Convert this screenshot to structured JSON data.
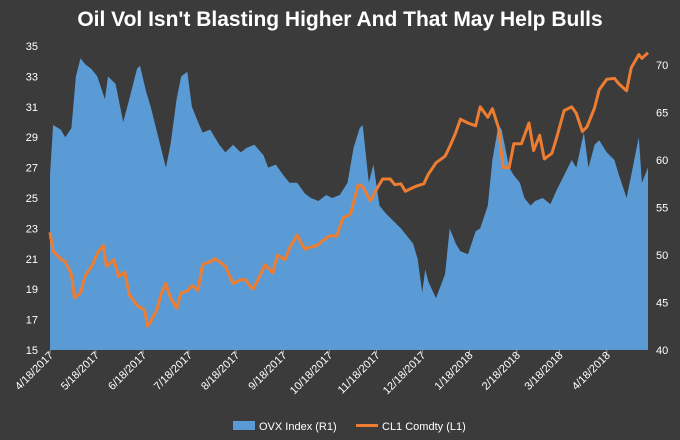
{
  "chart_data": {
    "type": "area",
    "title": "Oil Vol Isn't Blasting Higher And That May Help Bulls",
    "x_tick_labels": [
      "4/18/2017",
      "5/18/2017",
      "6/18/2017",
      "7/18/2017",
      "8/18/2017",
      "9/18/2017",
      "10/18/2017",
      "11/18/2017",
      "12/18/2017",
      "1/18/2018",
      "2/18/2018",
      "3/18/2018",
      "4/18/2018"
    ],
    "y_left": {
      "range": [
        15,
        35
      ],
      "ticks": [
        15,
        17,
        19,
        21,
        23,
        25,
        27,
        29,
        31,
        33,
        35
      ]
    },
    "y_right": {
      "range": [
        40,
        72
      ],
      "ticks": [
        40,
        45,
        50,
        55,
        60,
        65,
        70
      ]
    },
    "x_range": [
      "2017-04-18",
      "2018-05-15"
    ],
    "legend_position": "bottom",
    "grid": false,
    "series": [
      {
        "name": "OVX Index  (R1)",
        "type": "area",
        "axis": "left",
        "color": "#5b9bd5",
        "points": [
          [
            "2017-04-18",
            26.5
          ],
          [
            "2017-04-20",
            29.8
          ],
          [
            "2017-04-25",
            29.5
          ],
          [
            "2017-04-28",
            29.0
          ],
          [
            "2017-05-02",
            29.6
          ],
          [
            "2017-05-05",
            33.0
          ],
          [
            "2017-05-08",
            34.2
          ],
          [
            "2017-05-11",
            33.8
          ],
          [
            "2017-05-15",
            33.5
          ],
          [
            "2017-05-19",
            33.0
          ],
          [
            "2017-05-24",
            31.5
          ],
          [
            "2017-05-26",
            33.0
          ],
          [
            "2017-05-31",
            32.5
          ],
          [
            "2017-06-05",
            30.0
          ],
          [
            "2017-06-09",
            31.5
          ],
          [
            "2017-06-14",
            33.5
          ],
          [
            "2017-06-16",
            33.7
          ],
          [
            "2017-06-20",
            32.0
          ],
          [
            "2017-06-23",
            31.0
          ],
          [
            "2017-06-28",
            29.0
          ],
          [
            "2017-07-03",
            27.0
          ],
          [
            "2017-07-06",
            28.5
          ],
          [
            "2017-07-10",
            31.5
          ],
          [
            "2017-07-13",
            33.0
          ],
          [
            "2017-07-17",
            33.3
          ],
          [
            "2017-07-20",
            31.0
          ],
          [
            "2017-07-24",
            30.0
          ],
          [
            "2017-07-27",
            29.3
          ],
          [
            "2017-08-01",
            29.5
          ],
          [
            "2017-08-07",
            28.5
          ],
          [
            "2017-08-11",
            28.0
          ],
          [
            "2017-08-16",
            28.5
          ],
          [
            "2017-08-21",
            28.0
          ],
          [
            "2017-08-25",
            28.3
          ],
          [
            "2017-08-30",
            28.5
          ],
          [
            "2017-09-05",
            27.8
          ],
          [
            "2017-09-08",
            27.0
          ],
          [
            "2017-09-13",
            27.2
          ],
          [
            "2017-09-18",
            26.5
          ],
          [
            "2017-09-22",
            26.0
          ],
          [
            "2017-09-27",
            26.0
          ],
          [
            "2017-10-02",
            25.3
          ],
          [
            "2017-10-06",
            25.0
          ],
          [
            "2017-10-11",
            24.8
          ],
          [
            "2017-10-16",
            25.2
          ],
          [
            "2017-10-20",
            25.0
          ],
          [
            "2017-10-25",
            25.2
          ],
          [
            "2017-10-30",
            26.0
          ],
          [
            "2017-11-03",
            28.3
          ],
          [
            "2017-11-07",
            29.6
          ],
          [
            "2017-11-09",
            29.8
          ],
          [
            "2017-11-13",
            26.0
          ],
          [
            "2017-11-16",
            27.2
          ],
          [
            "2017-11-20",
            24.5
          ],
          [
            "2017-11-24",
            24.0
          ],
          [
            "2017-11-29",
            23.5
          ],
          [
            "2017-12-04",
            23.0
          ],
          [
            "2017-12-08",
            22.5
          ],
          [
            "2017-12-12",
            22.0
          ],
          [
            "2017-12-15",
            21.0
          ],
          [
            "2017-12-18",
            18.8
          ],
          [
            "2017-12-20",
            20.3
          ],
          [
            "2017-12-22",
            19.5
          ],
          [
            "2017-12-27",
            18.4
          ],
          [
            "2018-01-02",
            20.0
          ],
          [
            "2018-01-05",
            23.0
          ],
          [
            "2018-01-09",
            22.0
          ],
          [
            "2018-01-12",
            21.5
          ],
          [
            "2018-01-17",
            21.3
          ],
          [
            "2018-01-22",
            22.8
          ],
          [
            "2018-01-25",
            23.0
          ],
          [
            "2018-01-30",
            24.5
          ],
          [
            "2018-02-02",
            27.5
          ],
          [
            "2018-02-06",
            29.8
          ],
          [
            "2018-02-08",
            29.5
          ],
          [
            "2018-02-13",
            27.0
          ],
          [
            "2018-02-16",
            26.5
          ],
          [
            "2018-02-20",
            26.0
          ],
          [
            "2018-02-23",
            25.0
          ],
          [
            "2018-02-27",
            24.5
          ],
          [
            "2018-03-02",
            24.8
          ],
          [
            "2018-03-07",
            25.0
          ],
          [
            "2018-03-12",
            24.6
          ],
          [
            "2018-03-16",
            25.5
          ],
          [
            "2018-03-21",
            26.5
          ],
          [
            "2018-03-26",
            27.5
          ],
          [
            "2018-03-29",
            27.0
          ],
          [
            "2018-04-03",
            29.3
          ],
          [
            "2018-04-06",
            27.0
          ],
          [
            "2018-04-10",
            28.5
          ],
          [
            "2018-04-13",
            28.8
          ],
          [
            "2018-04-18",
            28.0
          ],
          [
            "2018-04-23",
            27.5
          ],
          [
            "2018-04-26",
            26.5
          ],
          [
            "2018-05-01",
            25.0
          ],
          [
            "2018-05-04",
            26.5
          ],
          [
            "2018-05-09",
            29.0
          ],
          [
            "2018-05-11",
            26.0
          ],
          [
            "2018-05-15",
            27.0
          ]
        ]
      },
      {
        "name": "CL1 Comdty  (L1)",
        "type": "line",
        "axis": "right",
        "color": "#ed7d31",
        "points": [
          [
            "2017-04-18",
            52.4
          ],
          [
            "2017-04-20",
            50.4
          ],
          [
            "2017-04-25",
            49.6
          ],
          [
            "2017-04-28",
            49.3
          ],
          [
            "2017-05-02",
            48.0
          ],
          [
            "2017-05-04",
            45.5
          ],
          [
            "2017-05-08",
            46.0
          ],
          [
            "2017-05-11",
            47.8
          ],
          [
            "2017-05-16",
            49.0
          ],
          [
            "2017-05-19",
            50.2
          ],
          [
            "2017-05-23",
            51.0
          ],
          [
            "2017-05-25",
            48.8
          ],
          [
            "2017-05-30",
            49.5
          ],
          [
            "2017-06-02",
            47.7
          ],
          [
            "2017-06-06",
            48.2
          ],
          [
            "2017-06-09",
            45.8
          ],
          [
            "2017-06-14",
            44.7
          ],
          [
            "2017-06-19",
            44.2
          ],
          [
            "2017-06-21",
            42.5
          ],
          [
            "2017-06-23",
            43.0
          ],
          [
            "2017-06-27",
            44.2
          ],
          [
            "2017-06-30",
            46.0
          ],
          [
            "2017-07-03",
            47.0
          ],
          [
            "2017-07-06",
            45.5
          ],
          [
            "2017-07-10",
            44.4
          ],
          [
            "2017-07-13",
            46.0
          ],
          [
            "2017-07-17",
            46.2
          ],
          [
            "2017-07-20",
            46.8
          ],
          [
            "2017-07-24",
            46.3
          ],
          [
            "2017-07-27",
            49.0
          ],
          [
            "2017-08-01",
            49.3
          ],
          [
            "2017-08-04",
            49.6
          ],
          [
            "2017-08-08",
            49.2
          ],
          [
            "2017-08-11",
            48.8
          ],
          [
            "2017-08-16",
            47.0
          ],
          [
            "2017-08-21",
            47.4
          ],
          [
            "2017-08-24",
            47.4
          ],
          [
            "2017-08-29",
            46.4
          ],
          [
            "2017-09-01",
            47.3
          ],
          [
            "2017-09-06",
            49.0
          ],
          [
            "2017-09-11",
            48.1
          ],
          [
            "2017-09-14",
            50.0
          ],
          [
            "2017-09-19",
            49.5
          ],
          [
            "2017-09-22",
            50.7
          ],
          [
            "2017-09-27",
            52.1
          ],
          [
            "2017-10-02",
            50.6
          ],
          [
            "2017-10-05",
            50.8
          ],
          [
            "2017-10-10",
            51.0
          ],
          [
            "2017-10-13",
            51.4
          ],
          [
            "2017-10-18",
            52.0
          ],
          [
            "2017-10-23",
            52.0
          ],
          [
            "2017-10-27",
            53.9
          ],
          [
            "2017-11-01",
            54.3
          ],
          [
            "2017-11-06",
            57.4
          ],
          [
            "2017-11-09",
            57.2
          ],
          [
            "2017-11-14",
            55.7
          ],
          [
            "2017-11-17",
            56.6
          ],
          [
            "2017-11-22",
            58.0
          ],
          [
            "2017-11-27",
            58.0
          ],
          [
            "2017-11-30",
            57.4
          ],
          [
            "2017-12-04",
            57.5
          ],
          [
            "2017-12-07",
            56.7
          ],
          [
            "2017-12-12",
            57.1
          ],
          [
            "2017-12-15",
            57.3
          ],
          [
            "2017-12-19",
            57.5
          ],
          [
            "2017-12-22",
            58.5
          ],
          [
            "2017-12-27",
            59.7
          ],
          [
            "2018-01-02",
            60.4
          ],
          [
            "2018-01-05",
            61.4
          ],
          [
            "2018-01-09",
            62.9
          ],
          [
            "2018-01-12",
            64.3
          ],
          [
            "2018-01-17",
            63.9
          ],
          [
            "2018-01-22",
            63.6
          ],
          [
            "2018-01-25",
            65.6
          ],
          [
            "2018-01-30",
            64.5
          ],
          [
            "2018-02-02",
            65.4
          ],
          [
            "2018-02-06",
            63.4
          ],
          [
            "2018-02-09",
            59.2
          ],
          [
            "2018-02-13",
            59.2
          ],
          [
            "2018-02-16",
            61.7
          ],
          [
            "2018-02-21",
            61.7
          ],
          [
            "2018-02-26",
            63.9
          ],
          [
            "2018-03-01",
            61.0
          ],
          [
            "2018-03-05",
            62.6
          ],
          [
            "2018-03-08",
            60.1
          ],
          [
            "2018-03-13",
            60.7
          ],
          [
            "2018-03-16",
            62.3
          ],
          [
            "2018-03-21",
            65.2
          ],
          [
            "2018-03-26",
            65.6
          ],
          [
            "2018-03-29",
            64.9
          ],
          [
            "2018-04-02",
            63.0
          ],
          [
            "2018-04-05",
            63.5
          ],
          [
            "2018-04-10",
            65.5
          ],
          [
            "2018-04-13",
            67.4
          ],
          [
            "2018-04-18",
            68.5
          ],
          [
            "2018-04-23",
            68.6
          ],
          [
            "2018-04-26",
            68.0
          ],
          [
            "2018-05-01",
            67.3
          ],
          [
            "2018-05-04",
            69.7
          ],
          [
            "2018-05-09",
            71.1
          ],
          [
            "2018-05-11",
            70.7
          ],
          [
            "2018-05-15",
            71.3
          ]
        ]
      }
    ]
  }
}
